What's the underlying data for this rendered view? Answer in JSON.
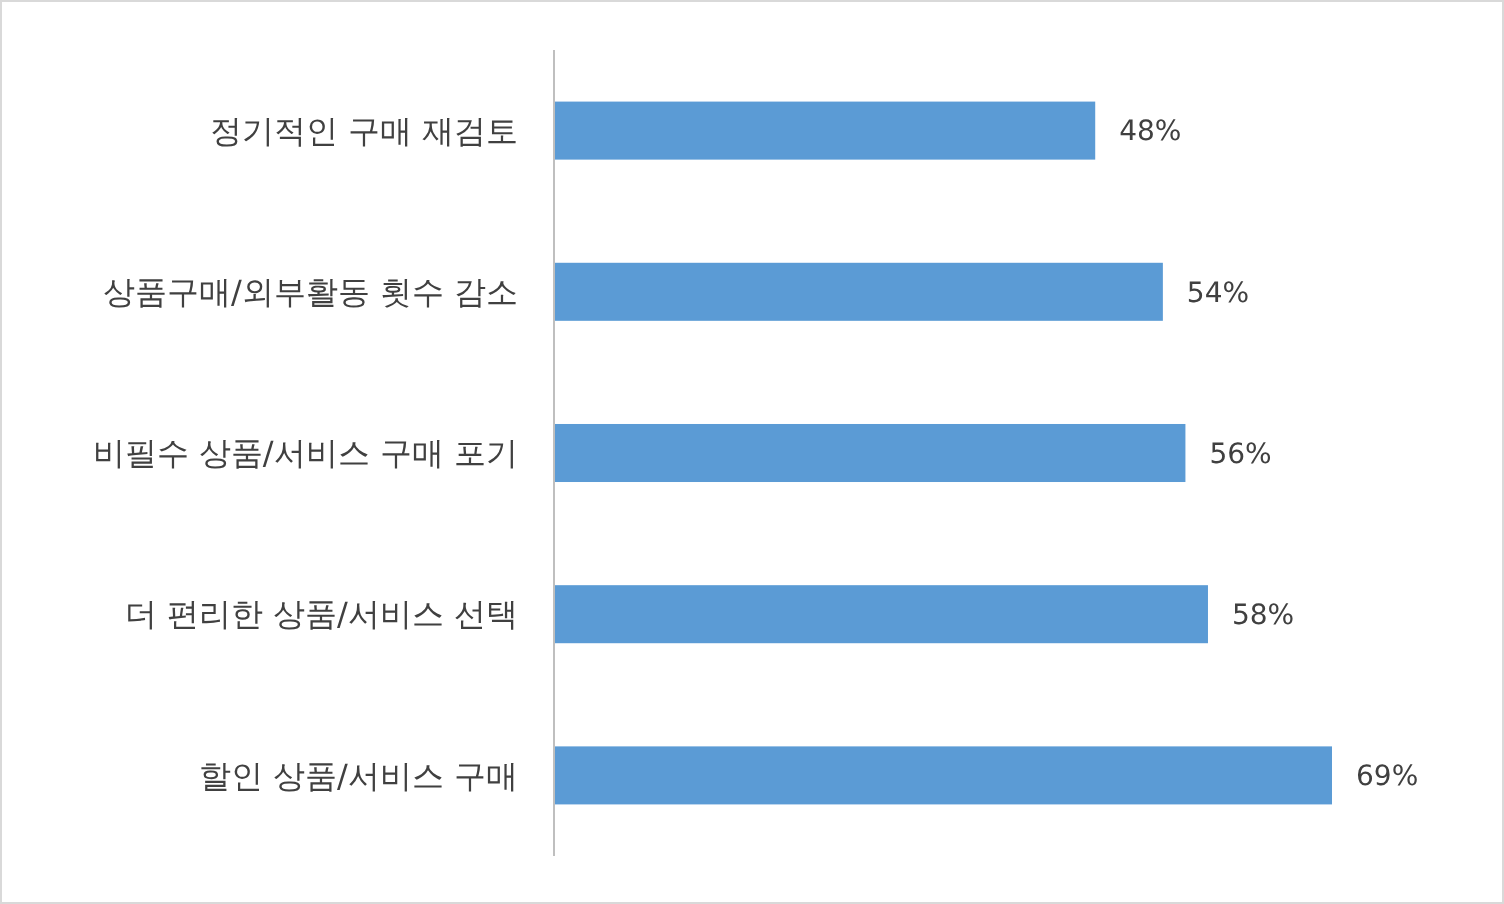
{
  "chart_data": {
    "type": "bar",
    "orientation": "horizontal",
    "categories": [
      "정기적인 구매 재검토",
      "상품구매/외부활동 횟수 감소",
      "비필수 상품/서비스 구매 포기",
      "더 편리한 상품/서비스 선택",
      "할인 상품/서비스 구매"
    ],
    "values": [
      48,
      54,
      56,
      58,
      69
    ],
    "color": "#5b9bd5",
    "value_labels": [
      "48%",
      "54%",
      "56%",
      "58%",
      "69%"
    ]
  }
}
